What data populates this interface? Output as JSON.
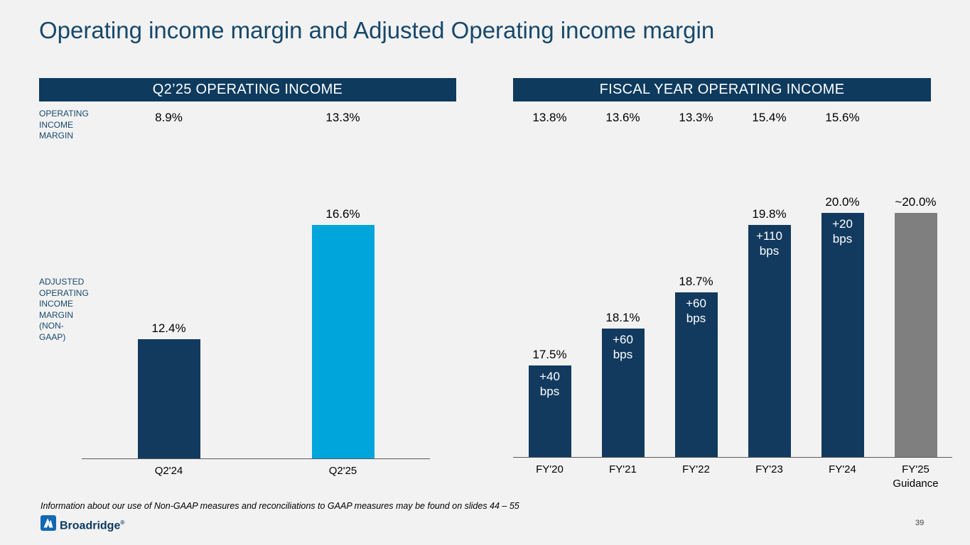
{
  "slide": {
    "title": "Operating income margin and Adjusted Operating income margin",
    "footnote": "Information about our use of Non-GAAP measures and reconciliations to GAAP measures may be found on slides 44 – 55",
    "page_number": "39",
    "logo": {
      "name": "Broadridge",
      "reg": "®"
    }
  },
  "labels": {
    "operating_income_margin": "OPERATING\nINCOME\nMARGIN",
    "adjusted_operating_income_margin": "ADJUSTED\nOPERATING\nINCOME\nMARGIN\n(NON-\nGAAP)"
  },
  "colors": {
    "navy": "#0e3a5d",
    "bar_navy": "#123a5e",
    "bar_light_blue": "#00a5dc",
    "bar_gray": "#7f7f7f",
    "title_text": "#17486b"
  },
  "chart_data": [
    {
      "type": "bar",
      "title": "Q2’25 OPERATING INCOME",
      "categories": [
        "Q2'24",
        "Q2'25"
      ],
      "operating_income_margin_row": [
        "8.9%",
        "13.3%"
      ],
      "series": [
        {
          "name": "Adjusted Operating income margin (Non-GAAP)",
          "values": [
            12.4,
            16.6
          ]
        }
      ],
      "values": [
        12.4,
        16.6
      ],
      "value_labels": [
        "12.4%",
        "16.6%"
      ],
      "bar_colors": [
        "#123a5e",
        "#00a5dc"
      ],
      "ylim": [
        8,
        17.6
      ],
      "grid": false,
      "legend": false
    },
    {
      "type": "bar",
      "title": "FISCAL YEAR OPERATING INCOME",
      "categories": [
        "FY'20",
        "FY'21",
        "FY'22",
        "FY'23",
        "FY'24",
        "FY'25\nGuidance"
      ],
      "operating_income_margin_row": [
        "13.8%",
        "13.6%",
        "13.3%",
        "15.4%",
        "15.6%",
        ""
      ],
      "series": [
        {
          "name": "Adjusted Operating income margin (Non-GAAP)",
          "values": [
            17.5,
            18.1,
            18.7,
            19.8,
            20.0,
            20.0
          ]
        }
      ],
      "values": [
        17.5,
        18.1,
        18.7,
        19.8,
        20.0,
        20.0
      ],
      "value_labels": [
        "17.5%",
        "18.1%",
        "18.7%",
        "19.8%",
        "20.0%",
        "~20.0%"
      ],
      "in_bar_labels": [
        "+40 bps",
        "+60 bps",
        "+60 bps",
        "+110 bps",
        "+20 bps",
        ""
      ],
      "bar_colors": [
        "#123a5e",
        "#123a5e",
        "#123a5e",
        "#123a5e",
        "#123a5e",
        "#7f7f7f"
      ],
      "ylim": [
        16,
        20.6
      ],
      "grid": false,
      "legend": false
    }
  ]
}
